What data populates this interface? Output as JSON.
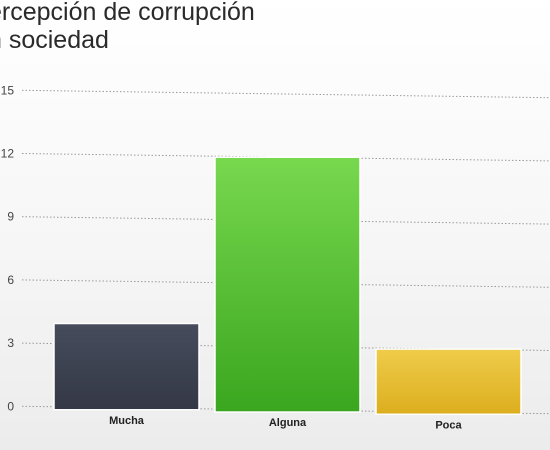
{
  "chart_data": {
    "type": "bar",
    "title_lines": [
      "ercepción de corrupción",
      "n sociedad"
    ],
    "categories": [
      "Mucha",
      "Alguna",
      "Poca"
    ],
    "values": [
      4,
      12,
      3
    ],
    "yticks": [
      "15",
      "12",
      "9",
      "6",
      "3",
      "0"
    ],
    "ylim": [
      0,
      15
    ],
    "grid": true,
    "colors": [
      "#3b404e",
      "#56c032",
      "#e5be2e"
    ]
  }
}
